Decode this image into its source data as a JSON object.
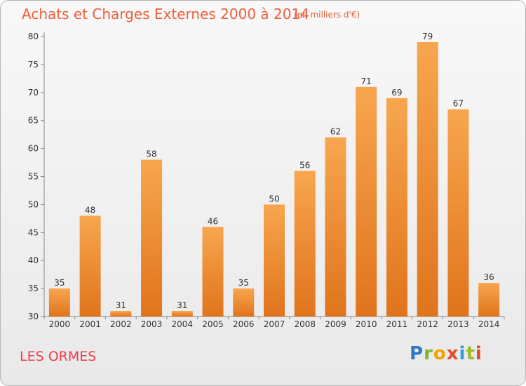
{
  "title": "Achats et Charges Externes 2000 à 2014",
  "subtitle": "(en milliers d'€)",
  "place": "LES ORMES",
  "logo": {
    "text": "Proxiti",
    "colors": [
      "#2f78c8",
      "#7fb52f",
      "#f0a400",
      "#e04d2b",
      "#2f9ed8",
      "#9bbd2a",
      "#e04d2b"
    ]
  },
  "colors": {
    "bar_top": "#f7a64f",
    "bar_bottom": "#e0741c",
    "title": "#ec5f39",
    "place": "#ec3f4f"
  },
  "chart_data": {
    "type": "bar",
    "title": "Achats et Charges Externes 2000 à 2014",
    "subtitle": "(en milliers d'€)",
    "categories": [
      "2000",
      "2001",
      "2002",
      "2003",
      "2004",
      "2005",
      "2006",
      "2007",
      "2008",
      "2009",
      "2010",
      "2011",
      "2012",
      "2013",
      "2014"
    ],
    "values": [
      35,
      48,
      31,
      58,
      31,
      46,
      35,
      50,
      56,
      62,
      71,
      69,
      79,
      67,
      36
    ],
    "ylim": [
      30,
      80
    ],
    "yticks": [
      30,
      35,
      40,
      45,
      50,
      55,
      60,
      65,
      70,
      75,
      80
    ],
    "grid": false,
    "xlabel": "",
    "ylabel": ""
  }
}
